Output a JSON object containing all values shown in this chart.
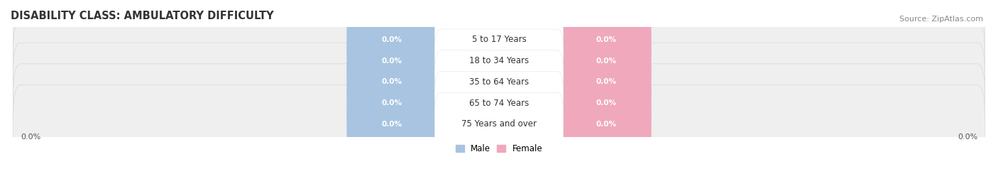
{
  "title": "DISABILITY CLASS: AMBULATORY DIFFICULTY",
  "source": "Source: ZipAtlas.com",
  "categories": [
    "5 to 17 Years",
    "18 to 34 Years",
    "35 to 64 Years",
    "65 to 74 Years",
    "75 Years and over"
  ],
  "male_values": [
    0.0,
    0.0,
    0.0,
    0.0,
    0.0
  ],
  "female_values": [
    0.0,
    0.0,
    0.0,
    0.0,
    0.0
  ],
  "male_color": "#a8c4e0",
  "female_color": "#f0a8bc",
  "row_bg_color": "#efefef",
  "row_border_color": "#d8d8d8",
  "label_text_color": "white",
  "category_text_color": "#333333",
  "title_color": "#333333",
  "source_color": "#888888",
  "axis_label_color": "#555555",
  "ylim_left_label": "0.0%",
  "ylim_right_label": "0.0%",
  "title_fontsize": 10.5,
  "source_fontsize": 8,
  "label_fontsize": 7.5,
  "category_fontsize": 8.5,
  "axis_label_fontsize": 8
}
